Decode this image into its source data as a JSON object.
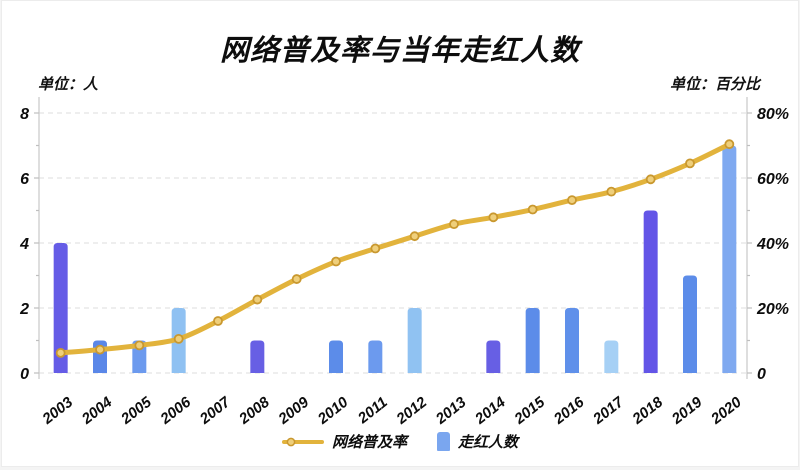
{
  "header": {
    "title": "网络普及率与当年走红人数"
  },
  "axes": {
    "left_unit": "单位：人",
    "right_unit": "单位：百分比"
  },
  "legend": {
    "line_label": "网络普及率",
    "bar_label": "走红人数",
    "bar_swatch_color": "#7AA6EF",
    "line_swatch_color": "#E2B33C"
  },
  "colors": {
    "line": "#E2B33C",
    "marker_fill": "#EFCF7B",
    "marker_stroke": "#C9982F",
    "grid": "#DCDCDC",
    "text": "#0D0D0D"
  },
  "chart_data": {
    "type": "line+bar",
    "title": "网络普及率与当年走红人数",
    "categories": [
      "2003",
      "2004",
      "2005",
      "2006",
      "2007",
      "2008",
      "2009",
      "2010",
      "2011",
      "2012",
      "2013",
      "2014",
      "2015",
      "2016",
      "2017",
      "2018",
      "2019",
      "2020"
    ],
    "series": [
      {
        "name": "网络普及率",
        "type": "line",
        "axis": "right",
        "unit": "百分比",
        "color": "#E2B33C",
        "marker_fill": "#EFCF7B",
        "marker_stroke": "#C9982F",
        "values": [
          6.2,
          7.2,
          8.5,
          10.5,
          16.0,
          22.6,
          28.9,
          34.3,
          38.3,
          42.1,
          45.8,
          47.9,
          50.3,
          53.2,
          55.8,
          59.6,
          64.5,
          70.4
        ]
      },
      {
        "name": "走红人数",
        "type": "bar",
        "axis": "left",
        "unit": "人",
        "values": [
          4,
          1,
          1,
          2,
          0,
          1,
          0,
          1,
          1,
          2,
          0,
          1,
          2,
          2,
          1,
          5,
          3,
          7
        ],
        "bar_colors": [
          "#655CE6",
          "#5A87E8",
          "#6C9AEE",
          "#8FC1F2",
          null,
          "#675FE4",
          null,
          "#5C8CE9",
          "#6C9AEE",
          "#90C2F2",
          null,
          "#675FE4",
          "#5C8CE9",
          "#5F90EA",
          "#A6D0F5",
          "#6355E7",
          "#5C8CE9",
          "#7FA9F0"
        ]
      }
    ],
    "left_axis": {
      "unit": "人",
      "ticks": [
        0,
        2,
        4,
        6,
        8
      ],
      "max": 8
    },
    "right_axis": {
      "unit": "百分比",
      "ticks": [
        0,
        20,
        40,
        60,
        80
      ],
      "tick_suffix": "%",
      "max": 80
    },
    "grid": "dashed-horizontal",
    "legend_position": "bottom"
  }
}
